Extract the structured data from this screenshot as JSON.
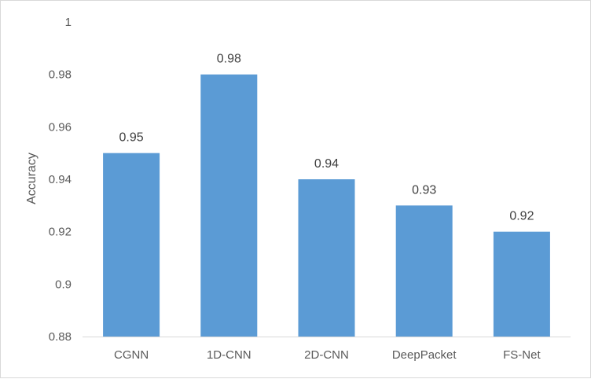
{
  "chart_data": {
    "type": "bar",
    "title": "",
    "xlabel": "",
    "ylabel": "Accuracy",
    "categories": [
      "CGNN",
      "1D-CNN",
      "2D-CNN",
      "DeepPacket",
      "FS-Net"
    ],
    "values": [
      0.95,
      0.98,
      0.94,
      0.93,
      0.92
    ],
    "data_labels": [
      "0.95",
      "0.98",
      "0.94",
      "0.93",
      "0.92"
    ],
    "ylim": [
      0.88,
      1.0
    ],
    "yticks": [
      0.88,
      0.9,
      0.92,
      0.94,
      0.96,
      0.98,
      1
    ],
    "ytick_labels": [
      "0.88",
      "0.9",
      "0.92",
      "0.94",
      "0.96",
      "0.98",
      "1"
    ],
    "grid": false,
    "legend": "none",
    "bar_color": "#5b9bd5"
  }
}
